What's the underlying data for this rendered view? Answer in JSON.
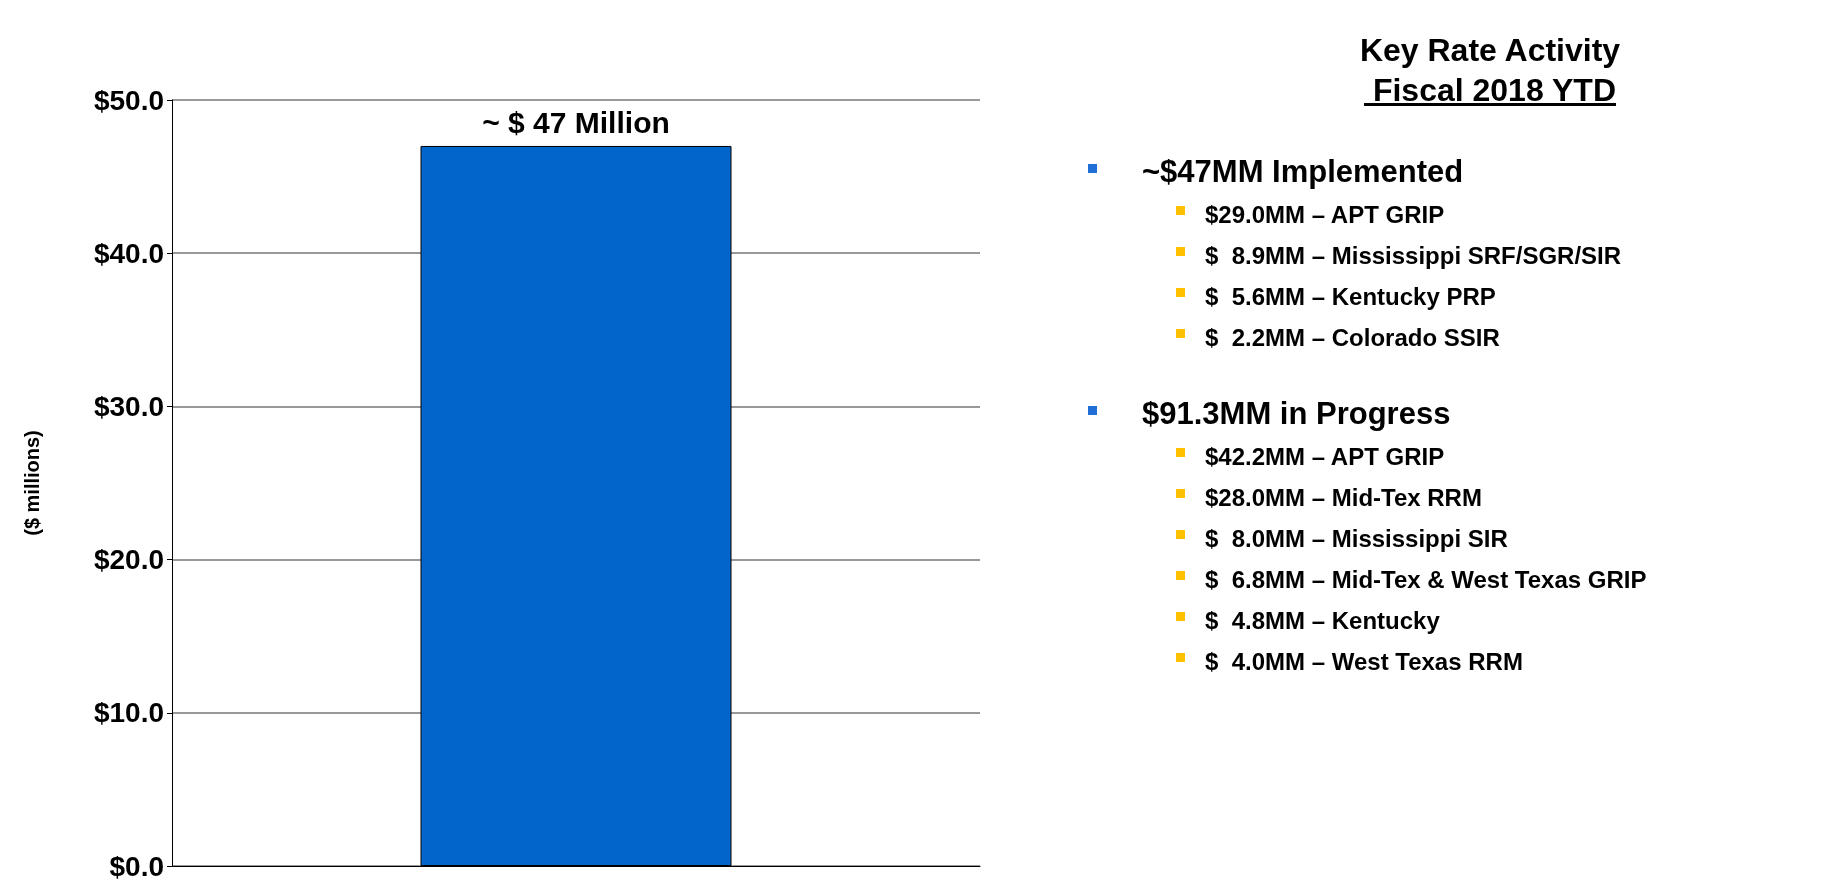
{
  "chart_data": [
    {
      "type": "bar",
      "categories": [
        null
      ],
      "values": [
        47
      ],
      "color": "#0066cc",
      "value_labels": [
        "~ $ 47 Million"
      ],
      "ylabel": "($ millions)",
      "ylim": [
        0,
        50
      ],
      "yticks": [
        {
          "value": 0,
          "label": "$0.0"
        },
        {
          "value": 10,
          "label": "$10.0"
        },
        {
          "value": 20,
          "label": "$20.0"
        },
        {
          "value": 30,
          "label": "$30.0"
        },
        {
          "value": 40,
          "label": "$40.0"
        },
        {
          "value": 50,
          "label": "$50.0"
        }
      ],
      "grid": "y"
    },
    {
      "type": "other",
      "title": "Key Rate Activity\n Fiscal 2018 YTD"
    },
    {
      "type": "other",
      "title": "~$47MM Implemented",
      "annotations": [
        "$29.0MM – APT GRIP",
        "$  8.9MM – Mississippi SRF/SGR/SIR",
        "$  5.6MM – Kentucky PRP",
        "$  2.2MM – Colorado SSIR"
      ]
    },
    {
      "type": "other",
      "title": "$91.3MM in Progress",
      "annotations": [
        "$42.2MM – APT GRIP",
        "$28.0MM – Mid-Tex RRM",
        "$  8.0MM – Mississippi SIR",
        "$  6.8MM – Mid-Tex & West Texas GRIP",
        "$  4.8MM – Kentucky",
        "$  4.0MM – West Texas RRM"
      ]
    }
  ]
}
